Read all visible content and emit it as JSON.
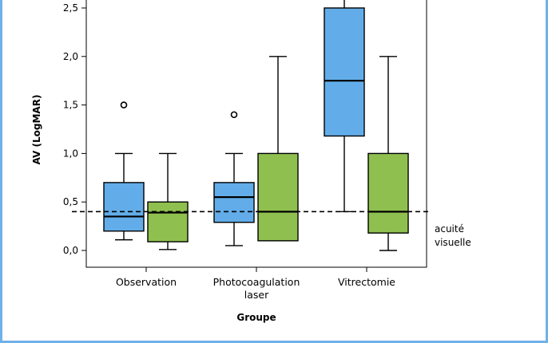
{
  "chart_data": {
    "type": "box",
    "title": "",
    "xlabel": "Groupe",
    "ylabel": "AV (LogMAR)",
    "ylim": [
      -0.17,
      2.58
    ],
    "yticks": [
      "0,0",
      "0,5",
      "1,0",
      "1,5",
      "2,0",
      "2,5"
    ],
    "ytick_values": [
      0,
      0.5,
      1.0,
      1.5,
      2.0,
      2.5
    ],
    "categories": [
      {
        "lines": [
          "Observation"
        ]
      },
      {
        "lines": [
          "Photocoagulation",
          "laser"
        ]
      },
      {
        "lines": [
          "Vitrectomie"
        ]
      }
    ],
    "series": [
      {
        "color": "#62ade9",
        "boxes": [
          {
            "min": 0.11,
            "q1": 0.2,
            "median": 0.35,
            "q3": 0.7,
            "max": 1.0,
            "outliers": [
              1.5
            ]
          },
          {
            "min": 0.05,
            "q1": 0.29,
            "median": 0.55,
            "q3": 0.7,
            "max": 1.0,
            "outliers": [
              1.4
            ]
          },
          {
            "min": 0.4,
            "q1": 1.18,
            "median": 1.75,
            "q3": 2.5,
            "max": 2.6,
            "outliers": []
          }
        ]
      },
      {
        "color": "#8fc04f",
        "boxes": [
          {
            "min": 0.01,
            "q1": 0.09,
            "median": 0.39,
            "q3": 0.5,
            "max": 1.0,
            "outliers": []
          },
          {
            "min": 0.1,
            "q1": 0.1,
            "median": 0.4,
            "q3": 1.0,
            "max": 2.0,
            "outliers": []
          },
          {
            "min": 0.0,
            "q1": 0.18,
            "median": 0.4,
            "q3": 1.0,
            "max": 2.0,
            "outliers": []
          }
        ]
      }
    ],
    "reference_line": {
      "value": 0.4,
      "label_lines": [
        "acuité",
        "visuelle"
      ]
    }
  }
}
